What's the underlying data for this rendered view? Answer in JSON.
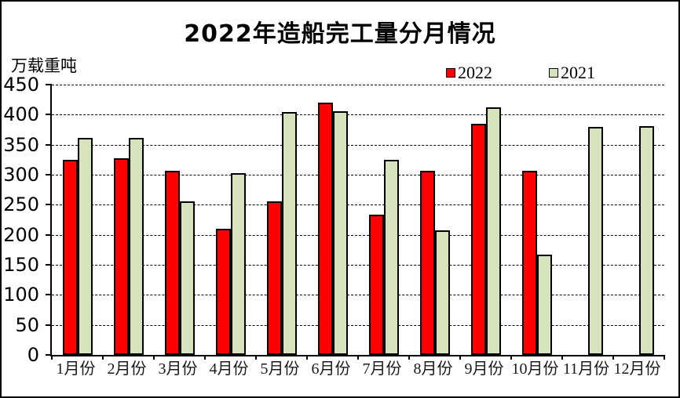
{
  "header": {
    "title": "2022年造船完工量分月情况"
  },
  "axis_unit_label": "万载重吨",
  "legend": {
    "position": "top-right",
    "items": [
      {
        "label": "2022",
        "color": "#FF0000"
      },
      {
        "label": "2021",
        "color": "#D6E3BC"
      }
    ]
  },
  "chart_data": {
    "type": "bar",
    "title": "2022年造船完工量分月情况",
    "ylabel": "万载重吨",
    "categories": [
      "1月份",
      "2月份",
      "3月份",
      "4月份",
      "5月份",
      "6月份",
      "7月份",
      "8月份",
      "9月份",
      "10月份",
      "11月份",
      "12月份"
    ],
    "series": [
      {
        "name": "2022",
        "color": "#FF0000",
        "values": [
          325,
          327,
          307,
          210,
          255,
          420,
          234,
          307,
          385,
          307,
          null,
          null
        ]
      },
      {
        "name": "2021",
        "color": "#D6E3BC",
        "values": [
          361,
          361,
          255,
          302,
          404,
          405,
          325,
          207,
          412,
          167,
          380,
          381
        ]
      }
    ],
    "ylim": [
      0,
      450
    ],
    "ytick_interval": 50,
    "yticks": [
      0,
      50,
      100,
      150,
      200,
      250,
      300,
      350,
      400,
      450
    ],
    "grid": "horizontal-dashed",
    "legend_position": "top-right",
    "bar_border_color": "#000000",
    "background": "#FFFFFF"
  }
}
